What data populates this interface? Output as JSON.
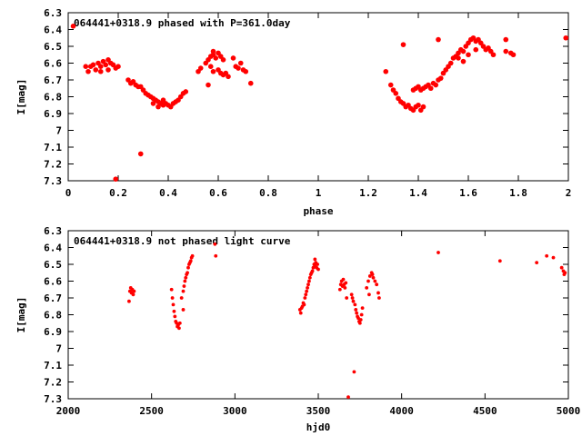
{
  "chart_data": [
    {
      "type": "scatter",
      "title": "064441+0318.9 phased with P=361.0day",
      "xlabel": "phase",
      "ylabel": "I[mag]",
      "xlim": [
        0,
        2
      ],
      "ylim": [
        6.3,
        7.3
      ],
      "y_inverted": true,
      "x_ticks": [
        0,
        0.2,
        0.4,
        0.6,
        0.8,
        1,
        1.2,
        1.4,
        1.6,
        1.8,
        2
      ],
      "y_ticks": [
        6.3,
        6.4,
        6.5,
        6.6,
        6.7,
        6.8,
        6.9,
        7,
        7.1,
        7.2,
        7.3
      ],
      "grid": false,
      "marker_color": "#ff0000",
      "series": [
        {
          "points": [
            [
              0.02,
              6.38
            ],
            [
              0.07,
              6.62
            ],
            [
              0.08,
              6.65
            ],
            [
              0.09,
              6.62
            ],
            [
              0.1,
              6.61
            ],
            [
              0.11,
              6.64
            ],
            [
              0.12,
              6.6
            ],
            [
              0.13,
              6.62
            ],
            [
              0.14,
              6.59
            ],
            [
              0.15,
              6.61
            ],
            [
              0.16,
              6.58
            ],
            [
              0.17,
              6.6
            ],
            [
              0.18,
              6.61
            ],
            [
              0.19,
              6.63
            ],
            [
              0.2,
              6.62
            ],
            [
              0.16,
              6.64
            ],
            [
              0.13,
              6.65
            ],
            [
              0.19,
              7.29
            ],
            [
              0.29,
              7.14
            ],
            [
              0.24,
              6.7
            ],
            [
              0.25,
              6.72
            ],
            [
              0.26,
              6.71
            ],
            [
              0.27,
              6.73
            ],
            [
              0.28,
              6.74
            ],
            [
              0.29,
              6.74
            ],
            [
              0.3,
              6.76
            ],
            [
              0.31,
              6.78
            ],
            [
              0.32,
              6.79
            ],
            [
              0.33,
              6.8
            ],
            [
              0.34,
              6.81
            ],
            [
              0.35,
              6.82
            ],
            [
              0.36,
              6.83
            ],
            [
              0.37,
              6.84
            ],
            [
              0.38,
              6.85
            ],
            [
              0.39,
              6.84
            ],
            [
              0.4,
              6.85
            ],
            [
              0.41,
              6.86
            ],
            [
              0.42,
              6.84
            ],
            [
              0.43,
              6.83
            ],
            [
              0.44,
              6.82
            ],
            [
              0.45,
              6.8
            ],
            [
              0.46,
              6.78
            ],
            [
              0.47,
              6.77
            ],
            [
              0.34,
              6.84
            ],
            [
              0.36,
              6.86
            ],
            [
              0.38,
              6.82
            ],
            [
              0.52,
              6.65
            ],
            [
              0.53,
              6.63
            ],
            [
              0.55,
              6.6
            ],
            [
              0.56,
              6.58
            ],
            [
              0.57,
              6.56
            ],
            [
              0.58,
              6.55
            ],
            [
              0.59,
              6.57
            ],
            [
              0.6,
              6.54
            ],
            [
              0.61,
              6.56
            ],
            [
              0.62,
              6.58
            ],
            [
              0.57,
              6.62
            ],
            [
              0.58,
              6.65
            ],
            [
              0.6,
              6.64
            ],
            [
              0.61,
              6.66
            ],
            [
              0.62,
              6.67
            ],
            [
              0.63,
              6.66
            ],
            [
              0.64,
              6.68
            ],
            [
              0.66,
              6.57
            ],
            [
              0.67,
              6.62
            ],
            [
              0.68,
              6.63
            ],
            [
              0.69,
              6.6
            ],
            [
              0.7,
              6.64
            ],
            [
              0.71,
              6.65
            ],
            [
              0.56,
              6.73
            ],
            [
              0.73,
              6.72
            ],
            [
              0.58,
              6.53
            ],
            [
              1.27,
              6.65
            ],
            [
              1.29,
              6.73
            ],
            [
              1.3,
              6.76
            ],
            [
              1.31,
              6.78
            ],
            [
              1.32,
              6.81
            ],
            [
              1.33,
              6.83
            ],
            [
              1.34,
              6.84
            ],
            [
              1.35,
              6.86
            ],
            [
              1.36,
              6.85
            ],
            [
              1.37,
              6.87
            ],
            [
              1.38,
              6.88
            ],
            [
              1.39,
              6.86
            ],
            [
              1.4,
              6.85
            ],
            [
              1.41,
              6.88
            ],
            [
              1.42,
              6.86
            ],
            [
              1.38,
              6.76
            ],
            [
              1.39,
              6.75
            ],
            [
              1.4,
              6.74
            ],
            [
              1.41,
              6.76
            ],
            [
              1.42,
              6.75
            ],
            [
              1.43,
              6.74
            ],
            [
              1.44,
              6.73
            ],
            [
              1.45,
              6.75
            ],
            [
              1.46,
              6.72
            ],
            [
              1.47,
              6.73
            ],
            [
              1.48,
              6.7
            ],
            [
              1.49,
              6.69
            ],
            [
              1.5,
              6.66
            ],
            [
              1.51,
              6.64
            ],
            [
              1.52,
              6.62
            ],
            [
              1.53,
              6.6
            ],
            [
              1.54,
              6.57
            ],
            [
              1.55,
              6.56
            ],
            [
              1.56,
              6.54
            ],
            [
              1.57,
              6.52
            ],
            [
              1.58,
              6.53
            ],
            [
              1.59,
              6.5
            ],
            [
              1.6,
              6.48
            ],
            [
              1.61,
              6.46
            ],
            [
              1.62,
              6.45
            ],
            [
              1.63,
              6.47
            ],
            [
              1.64,
              6.46
            ],
            [
              1.65,
              6.48
            ],
            [
              1.66,
              6.5
            ],
            [
              1.67,
              6.52
            ],
            [
              1.68,
              6.51
            ],
            [
              1.69,
              6.53
            ],
            [
              1.7,
              6.55
            ],
            [
              1.34,
              6.49
            ],
            [
              1.48,
              6.46
            ],
            [
              1.56,
              6.57
            ],
            [
              1.58,
              6.59
            ],
            [
              1.6,
              6.55
            ],
            [
              1.63,
              6.52
            ],
            [
              1.75,
              6.46
            ],
            [
              1.75,
              6.53
            ],
            [
              1.77,
              6.54
            ],
            [
              1.78,
              6.55
            ],
            [
              1.99,
              6.45
            ]
          ]
        }
      ]
    },
    {
      "type": "scatter",
      "title": "064441+0318.9 not phased light curve",
      "xlabel": "hjd0",
      "ylabel": "I[mag]",
      "xlim": [
        2000,
        5000
      ],
      "ylim": [
        6.3,
        7.3
      ],
      "y_inverted": true,
      "x_ticks": [
        2000,
        2500,
        3000,
        3500,
        4000,
        4500,
        5000
      ],
      "y_ticks": [
        6.3,
        6.4,
        6.5,
        6.6,
        6.7,
        6.8,
        6.9,
        7,
        7.1,
        7.2,
        7.3
      ],
      "grid": false,
      "marker_color": "#ff0000",
      "series": [
        {
          "points": [
            [
              2365,
              6.72
            ],
            [
              2370,
              6.66
            ],
            [
              2375,
              6.64
            ],
            [
              2380,
              6.67
            ],
            [
              2385,
              6.65
            ],
            [
              2390,
              6.68
            ],
            [
              2395,
              6.66
            ],
            [
              2620,
              6.65
            ],
            [
              2625,
              6.7
            ],
            [
              2630,
              6.74
            ],
            [
              2635,
              6.78
            ],
            [
              2640,
              6.81
            ],
            [
              2645,
              6.84
            ],
            [
              2650,
              6.85
            ],
            [
              2655,
              6.87
            ],
            [
              2660,
              6.86
            ],
            [
              2665,
              6.88
            ],
            [
              2670,
              6.85
            ],
            [
              2680,
              6.7
            ],
            [
              2690,
              6.66
            ],
            [
              2695,
              6.63
            ],
            [
              2700,
              6.6
            ],
            [
              2705,
              6.58
            ],
            [
              2710,
              6.56
            ],
            [
              2715,
              6.55
            ],
            [
              2720,
              6.52
            ],
            [
              2725,
              6.5
            ],
            [
              2730,
              6.49
            ],
            [
              2735,
              6.48
            ],
            [
              2740,
              6.46
            ],
            [
              2745,
              6.45
            ],
            [
              2690,
              6.77
            ],
            [
              2880,
              6.38
            ],
            [
              2885,
              6.45
            ],
            [
              3390,
              6.77
            ],
            [
              3395,
              6.79
            ],
            [
              3400,
              6.76
            ],
            [
              3405,
              6.75
            ],
            [
              3410,
              6.73
            ],
            [
              3415,
              6.74
            ],
            [
              3420,
              6.7
            ],
            [
              3425,
              6.68
            ],
            [
              3430,
              6.66
            ],
            [
              3435,
              6.64
            ],
            [
              3440,
              6.62
            ],
            [
              3445,
              6.6
            ],
            [
              3450,
              6.58
            ],
            [
              3455,
              6.56
            ],
            [
              3460,
              6.55
            ],
            [
              3465,
              6.54
            ],
            [
              3470,
              6.52
            ],
            [
              3475,
              6.5
            ],
            [
              3480,
              6.51
            ],
            [
              3485,
              6.49
            ],
            [
              3490,
              6.52
            ],
            [
              3495,
              6.5
            ],
            [
              3500,
              6.53
            ],
            [
              3480,
              6.47
            ],
            [
              3630,
              6.65
            ],
            [
              3635,
              6.62
            ],
            [
              3640,
              6.6
            ],
            [
              3645,
              6.63
            ],
            [
              3650,
              6.59
            ],
            [
              3655,
              6.62
            ],
            [
              3660,
              6.64
            ],
            [
              3665,
              6.61
            ],
            [
              3670,
              6.7
            ],
            [
              3680,
              7.29
            ],
            [
              3700,
              6.68
            ],
            [
              3705,
              6.7
            ],
            [
              3710,
              6.72
            ],
            [
              3715,
              7.14
            ],
            [
              3720,
              6.74
            ],
            [
              3725,
              6.77
            ],
            [
              3730,
              6.79
            ],
            [
              3735,
              6.81
            ],
            [
              3740,
              6.82
            ],
            [
              3745,
              6.84
            ],
            [
              3750,
              6.85
            ],
            [
              3755,
              6.83
            ],
            [
              3760,
              6.8
            ],
            [
              3765,
              6.76
            ],
            [
              3790,
              6.64
            ],
            [
              3800,
              6.6
            ],
            [
              3810,
              6.57
            ],
            [
              3820,
              6.55
            ],
            [
              3825,
              6.56
            ],
            [
              3830,
              6.58
            ],
            [
              3840,
              6.6
            ],
            [
              3850,
              6.62
            ],
            [
              3860,
              6.67
            ],
            [
              3865,
              6.7
            ],
            [
              3805,
              6.68
            ],
            [
              4220,
              6.43
            ],
            [
              4590,
              6.48
            ],
            [
              4810,
              6.49
            ],
            [
              4870,
              6.45
            ],
            [
              4910,
              6.46
            ],
            [
              4960,
              6.52
            ],
            [
              4970,
              6.54
            ],
            [
              4975,
              6.56
            ],
            [
              4980,
              6.55
            ]
          ]
        }
      ]
    }
  ]
}
